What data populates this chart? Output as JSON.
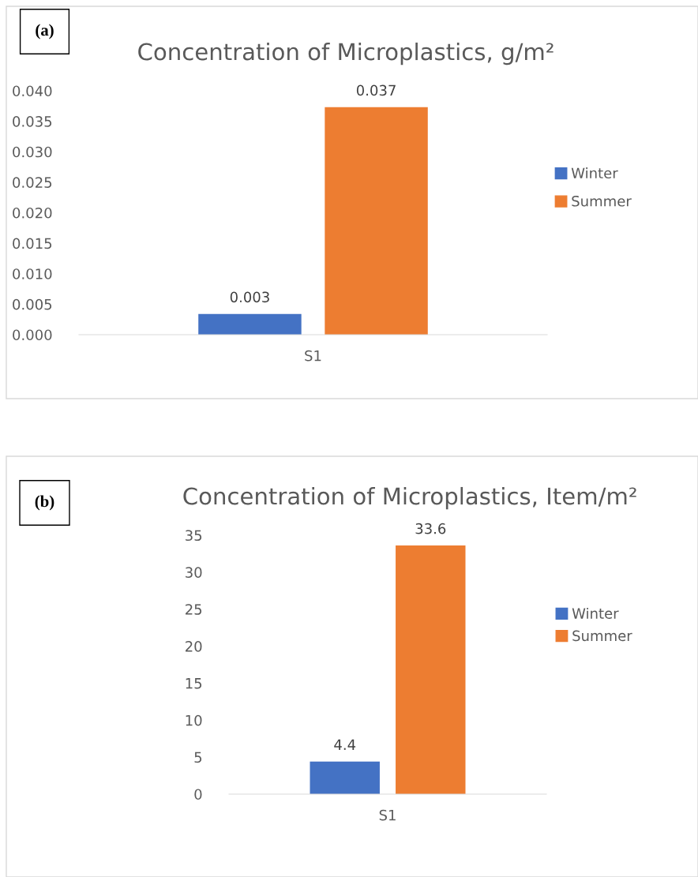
{
  "chart_data": [
    {
      "type": "bar",
      "title": "Concentration of Microplastics, g/m²",
      "annotations": [
        "(a)"
      ],
      "categories": [
        "S1"
      ],
      "series": [
        {
          "name": "Winter",
          "color": "#4472c4",
          "values": [
            0.0034
          ],
          "value_labels": [
            "0.003"
          ]
        },
        {
          "name": "Summer",
          "color": "#ed7d31",
          "values": [
            0.0373
          ],
          "value_labels": [
            "0.037"
          ]
        }
      ],
      "ylim": [
        0,
        0.04
      ],
      "yticks": [
        {
          "value": 0,
          "label": "0.000"
        },
        {
          "value": 0.005,
          "label": "0.005"
        },
        {
          "value": 0.01,
          "label": "0.010"
        },
        {
          "value": 0.015,
          "label": "0.015"
        },
        {
          "value": 0.02,
          "label": "0.020"
        },
        {
          "value": 0.025,
          "label": "0.025"
        },
        {
          "value": 0.03,
          "label": "0.030"
        },
        {
          "value": 0.035,
          "label": "0.035"
        },
        {
          "value": 0.04,
          "label": "0.040"
        }
      ],
      "grid": false,
      "legend": "right"
    },
    {
      "type": "bar",
      "title": "Concentration of Microplastics, Item/m²",
      "annotations": [
        "(b)"
      ],
      "categories": [
        "S1"
      ],
      "series": [
        {
          "name": "Winter",
          "color": "#4472c4",
          "values": [
            4.4
          ]
        },
        {
          "name": "Summer",
          "color": "#ed7d31",
          "values": [
            33.6
          ]
        }
      ],
      "ylim": [
        0,
        35
      ],
      "yticks": [
        0,
        5,
        10,
        15,
        20,
        25,
        30,
        35
      ],
      "grid": false,
      "legend": "right",
      "data_labels": true
    }
  ]
}
